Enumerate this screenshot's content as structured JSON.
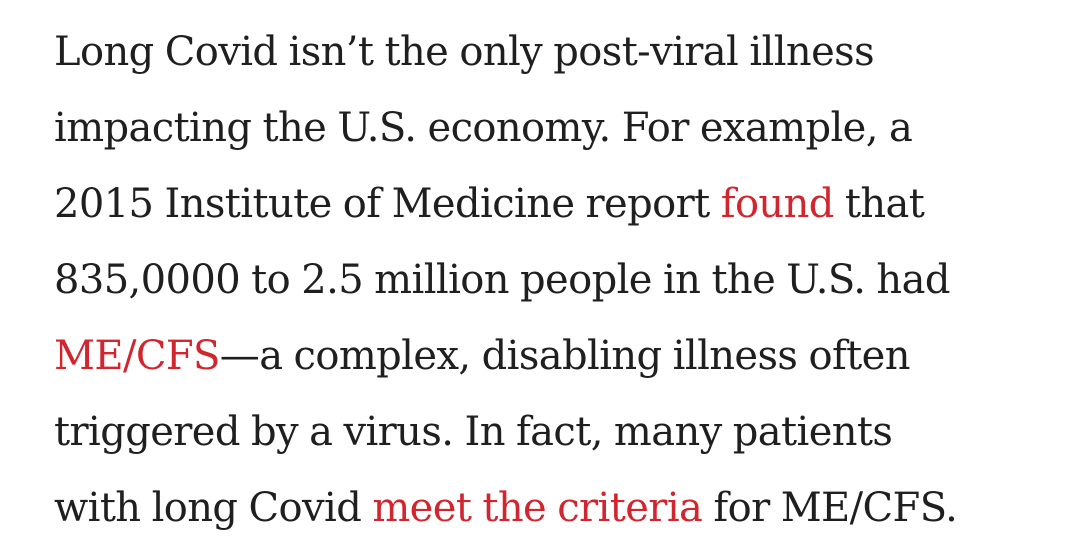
{
  "article": {
    "lines": [
      "Long Covid isn’t the only post-viral illness",
      "impacting the U.S. economy. For example, a",
      {
        "before": "2015 Institute of Medicine report ",
        "link": "found",
        "after": " that"
      },
      "835,0000 to 2.5 million people in the U.S. had",
      {
        "before": "",
        "link": "ME/CFS",
        "after": "—a complex, disabling illness often"
      },
      "triggered by a virus. In fact, many patients",
      {
        "before": "with long Covid ",
        "link": "meet the criteria",
        "after": " for ME/CFS."
      }
    ]
  },
  "colors": {
    "text": "#1f1f1f",
    "link": "#d1262f",
    "background": "#ffffff"
  }
}
